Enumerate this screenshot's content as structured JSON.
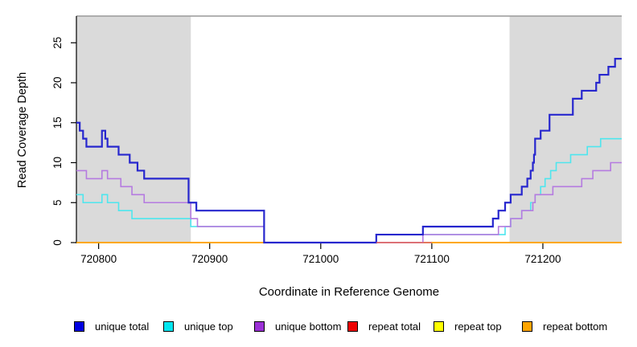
{
  "chart_data": {
    "type": "line",
    "subtype": "step",
    "title": "",
    "xlabel": "Coordinate in Reference Genome",
    "ylabel": "Read Coverage Depth",
    "xlim": [
      720780,
      721271
    ],
    "ylim": [
      0,
      28.3
    ],
    "grid": false,
    "x_tick_values": [
      720800,
      720900,
      721000,
      721100,
      721200
    ],
    "x_tick_labels": [
      "720800",
      "720900",
      "721000",
      "721100",
      "721200"
    ],
    "y_tick_values": [
      0,
      5,
      10,
      15,
      20,
      25
    ],
    "y_tick_labels": [
      "0",
      "5",
      "10",
      "15",
      "20",
      "25"
    ],
    "bands": [
      {
        "name": "shaded-region-left",
        "from": 720780,
        "to": 720883,
        "color": "#DADADA"
      },
      {
        "name": "shaded-region-right",
        "from": 721170,
        "to": 721271,
        "color": "#DADADA"
      }
    ],
    "top_border_color": "#999999",
    "axis_color": "#000000",
    "series": [
      {
        "name": "repeat total",
        "color": "#CC0000",
        "width": 1.6,
        "points": [
          [
            720780,
            0
          ]
        ]
      },
      {
        "name": "repeat top",
        "color": "#FFFF00",
        "width": 1.6,
        "points": [
          [
            720780,
            0
          ]
        ]
      },
      {
        "name": "repeat bottom",
        "color": "#FFA500",
        "width": 1.8,
        "points": [
          [
            720780,
            0
          ]
        ]
      },
      {
        "name": "unique top",
        "color": "#4EE6EE",
        "width": 1.6,
        "points": [
          [
            720780,
            6
          ],
          [
            720786,
            5
          ],
          [
            720803,
            6
          ],
          [
            720808,
            5
          ],
          [
            720818,
            4
          ],
          [
            720830,
            3
          ],
          [
            720883,
            2
          ],
          [
            720949,
            0
          ],
          [
            721050,
            1
          ],
          [
            721166,
            2
          ],
          [
            721171,
            3
          ],
          [
            721181,
            4
          ],
          [
            721189,
            5
          ],
          [
            721193,
            6
          ],
          [
            721198,
            7
          ],
          [
            721202,
            8
          ],
          [
            721207,
            9
          ],
          [
            721212,
            10
          ],
          [
            721225,
            11
          ],
          [
            721240,
            12
          ],
          [
            721252,
            13
          ]
        ]
      },
      {
        "name": "unique bottom",
        "color": "#B57BE0",
        "width": 1.6,
        "points": [
          [
            720780,
            9
          ],
          [
            720789,
            8
          ],
          [
            720803,
            9
          ],
          [
            720808,
            8
          ],
          [
            720820,
            7
          ],
          [
            720830,
            6
          ],
          [
            720841,
            5
          ],
          [
            720883,
            3
          ],
          [
            720889,
            2
          ],
          [
            720949,
            0
          ],
          [
            721092,
            1
          ],
          [
            721160,
            2
          ],
          [
            721171,
            3
          ],
          [
            721181,
            4
          ],
          [
            721191,
            5
          ],
          [
            721193,
            6
          ],
          [
            721209,
            7
          ],
          [
            721235,
            8
          ],
          [
            721245,
            9
          ],
          [
            721261,
            10
          ]
        ]
      },
      {
        "name": "unique total",
        "color": "#2727CE",
        "width": 2.2,
        "points": [
          [
            720780,
            15
          ],
          [
            720783,
            14
          ],
          [
            720786,
            13
          ],
          [
            720789,
            12
          ],
          [
            720803,
            14
          ],
          [
            720806,
            13
          ],
          [
            720808,
            12
          ],
          [
            720818,
            11
          ],
          [
            720828,
            10
          ],
          [
            720835,
            9
          ],
          [
            720841,
            8
          ],
          [
            720881,
            5
          ],
          [
            720888,
            4
          ],
          [
            720949,
            0
          ],
          [
            721050,
            1
          ],
          [
            721092,
            2
          ],
          [
            721155,
            3
          ],
          [
            721160,
            4
          ],
          [
            721166,
            5
          ],
          [
            721171,
            6
          ],
          [
            721181,
            7
          ],
          [
            721186,
            8
          ],
          [
            721189,
            9
          ],
          [
            721191,
            10
          ],
          [
            721192,
            11
          ],
          [
            721193,
            13
          ],
          [
            721198,
            14
          ],
          [
            721206,
            16
          ],
          [
            721227,
            18
          ],
          [
            721235,
            19
          ],
          [
            721248,
            20
          ],
          [
            721251,
            21
          ],
          [
            721259,
            22
          ],
          [
            721265,
            23
          ]
        ]
      }
    ],
    "zero_line_overlays": [
      {
        "name": "zero-line-pink-segment",
        "from": 721050,
        "to": 721100,
        "value": 0,
        "color": "#DD6677",
        "width": 1.6
      }
    ],
    "legend": [
      {
        "label": "unique total",
        "color": "#0000E0"
      },
      {
        "label": "unique top",
        "color": "#00E6F0"
      },
      {
        "label": "unique bottom",
        "color": "#9B30D6"
      },
      {
        "label": "repeat total",
        "color": "#EE0000"
      },
      {
        "label": "repeat top",
        "color": "#FFFF00"
      },
      {
        "label": "repeat bottom",
        "color": "#FFA500"
      }
    ],
    "legend_position": "bottom"
  }
}
